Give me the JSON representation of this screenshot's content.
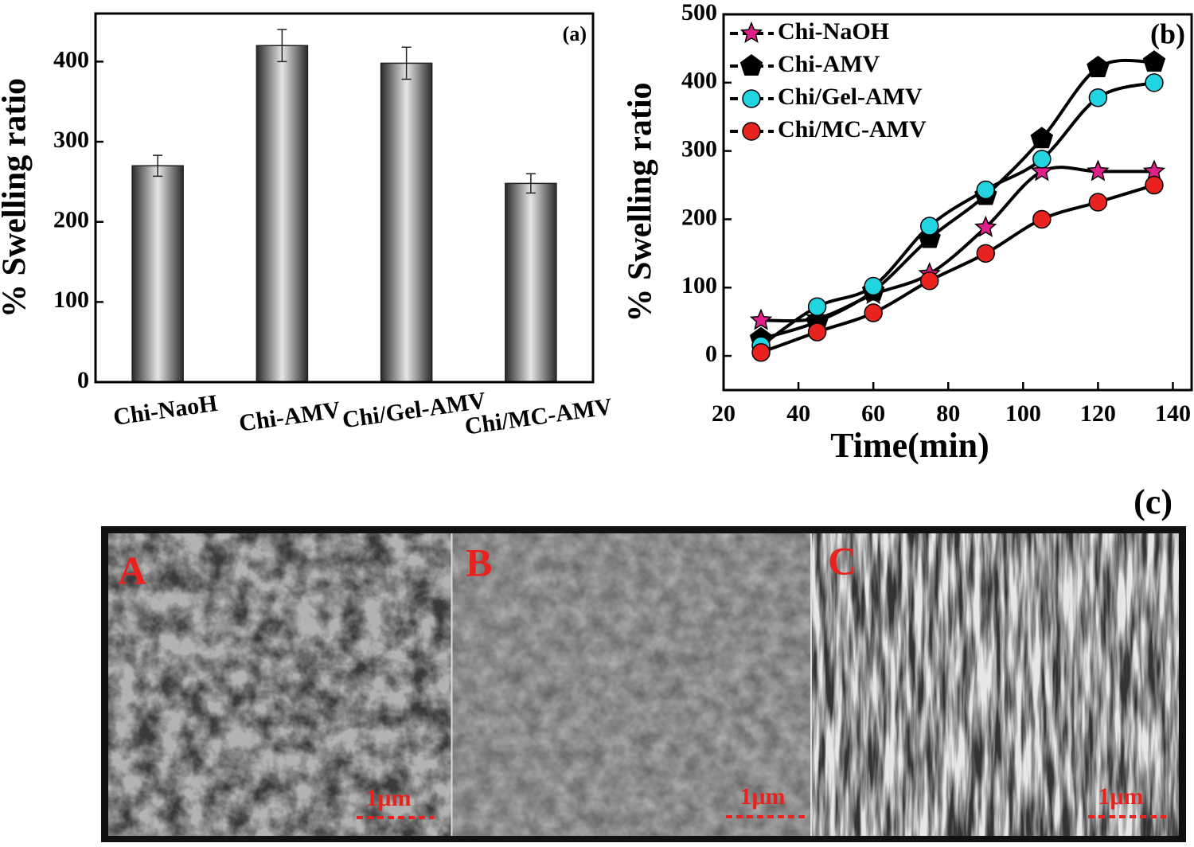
{
  "chart_data": [
    {
      "type": "bar",
      "panel_label": "(a)",
      "ylabel": "% Swelling ratio",
      "categories": [
        "Chi-NaoH",
        "Chi-AMV",
        "Chi/Gel-AMV",
        "Chi/MC-AMV"
      ],
      "values": [
        270,
        420,
        398,
        248
      ],
      "errors": [
        13,
        20,
        20,
        12
      ],
      "color": "#8a8a8a",
      "ylim": [
        0,
        460
      ],
      "yticks": [
        0,
        100,
        200,
        300,
        400
      ]
    },
    {
      "type": "line",
      "panel_label": "(b)",
      "xlabel": "Time(min)",
      "ylabel": "% Swelling ratio",
      "x": [
        30,
        45,
        60,
        75,
        90,
        105,
        120,
        135
      ],
      "series": [
        {
          "name": "Chi-NaOH",
          "color": "#e0208a",
          "marker": "star",
          "values": [
            52,
            55,
            90,
            120,
            188,
            270,
            270,
            270
          ]
        },
        {
          "name": "Chi-AMV",
          "color": "#000000",
          "marker": "pentagon",
          "values": [
            25,
            50,
            95,
            172,
            235,
            318,
            422,
            430
          ]
        },
        {
          "name": "Chi/Gel-AMV",
          "color": "#22d3e0",
          "marker": "circle",
          "values": [
            15,
            72,
            102,
            190,
            243,
            288,
            378,
            400
          ]
        },
        {
          "name": "Chi/MC-AMV",
          "color": "#e8231f",
          "marker": "circle",
          "values": [
            5,
            35,
            63,
            110,
            150,
            200,
            225,
            250
          ]
        }
      ],
      "xlim": [
        20,
        145
      ],
      "xticks": [
        20,
        40,
        60,
        80,
        100,
        120,
        140
      ],
      "ylim": [
        -50,
        500
      ],
      "yticks": [
        0,
        100,
        200,
        300,
        400,
        500
      ],
      "legend": "upper left"
    }
  ],
  "panel_c": {
    "label": "(c)",
    "panels": [
      {
        "label": "A",
        "scale_bar": "1μm"
      },
      {
        "label": "B",
        "scale_bar": "1μm"
      },
      {
        "label": "C",
        "scale_bar": "1μm"
      }
    ]
  }
}
